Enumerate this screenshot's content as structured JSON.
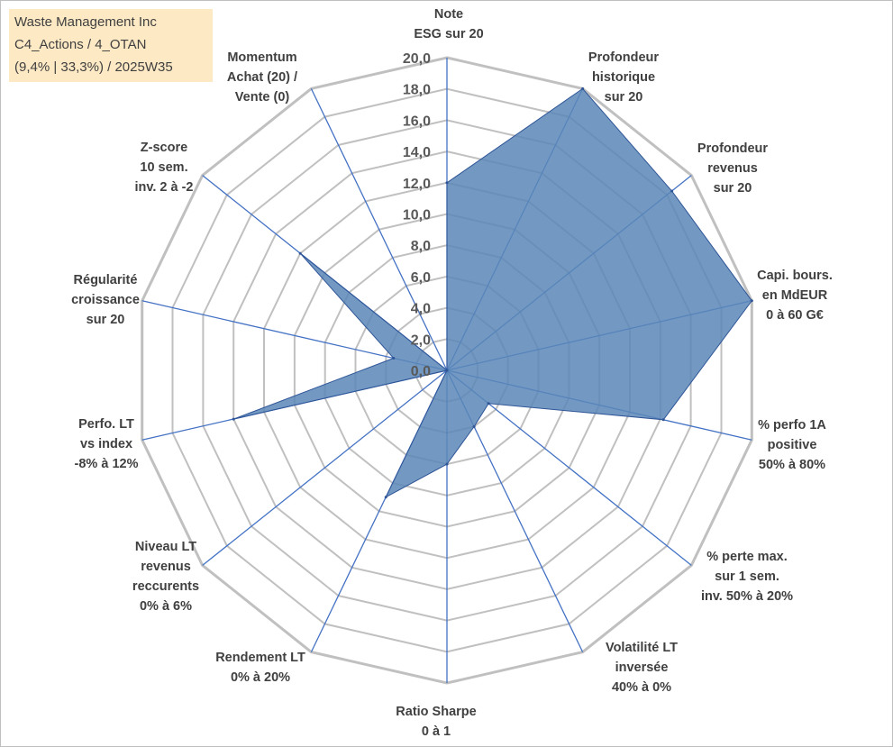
{
  "info_box": {
    "line1": "Waste Management Inc",
    "line2": "C4_Actions / 4_OTAN",
    "line3": "(9,4% | 33,3%) / 2025W35"
  },
  "colors": {
    "grid_ring": "#c0c0c0",
    "spoke": "#4472c4",
    "fill": "#5b87b8",
    "stroke": "#2f5597",
    "info_bg": "#fde9c4"
  },
  "chart_data": {
    "type": "radar",
    "title": "",
    "r_min": 0,
    "r_max": 20,
    "r_step": 2,
    "tick_labels": [
      "0,0",
      "2,0",
      "4,0",
      "6,0",
      "8,0",
      "10,0",
      "12,0",
      "14,0",
      "16,0",
      "18,0",
      "20,0"
    ],
    "grid": true,
    "axes": [
      {
        "label": [
          "Note",
          "ESG sur 20"
        ],
        "value": 12.0
      },
      {
        "label": [
          "Profondeur",
          "historique",
          "sur 20"
        ],
        "value": 20.0
      },
      {
        "label": [
          "Profondeur",
          "revenus",
          "sur 20"
        ],
        "value": 18.4
      },
      {
        "label": [
          "Capi. bours.",
          "en MdEUR",
          "0 à 60 G€"
        ],
        "value": 20.0
      },
      {
        "label": [
          "% perfo 1A",
          "positive",
          "50% à 80%"
        ],
        "value": 14.2
      },
      {
        "label": [
          "% perte max.",
          "sur 1 sem.",
          "inv. 50% à 20%"
        ],
        "value": 3.4
      },
      {
        "label": [
          "Volatilité LT",
          "inversée",
          "40% à 0%"
        ],
        "value": 4.0
      },
      {
        "label": [
          "Ratio Sharpe",
          "0 à 1"
        ],
        "value": 6.0
      },
      {
        "label": [
          "Rendement LT",
          "0% à 20%"
        ],
        "value": 9.0
      },
      {
        "label": [
          "Niveau LT",
          "revenus",
          "reccurents",
          "0% à 6%"
        ],
        "value": 0.0
      },
      {
        "label": [
          "Perfo. LT",
          "vs index",
          "-8% à 12%"
        ],
        "value": 14.0
      },
      {
        "label": [
          "Régularité",
          "croissance",
          "sur 20"
        ],
        "value": 3.5
      },
      {
        "label": [
          "Z-score",
          "10 sem.",
          "inv. 2 à -2"
        ],
        "value": 12.0
      },
      {
        "label": [
          "Momentum",
          "Achat (20) /",
          "Vente (0)"
        ],
        "value": 0.0
      }
    ]
  }
}
